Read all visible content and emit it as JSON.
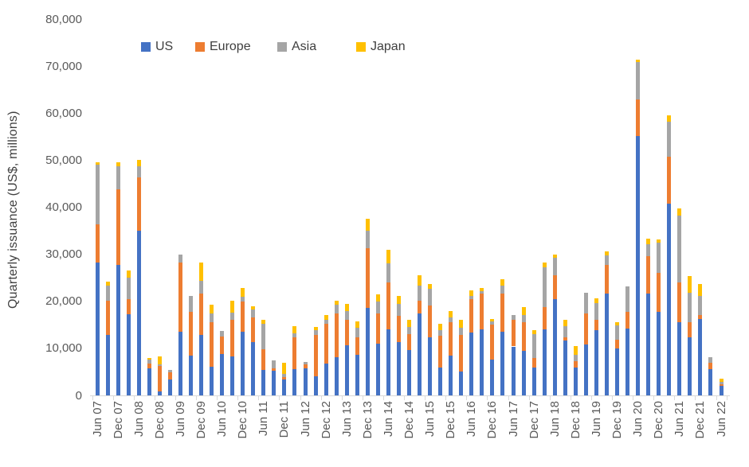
{
  "chart_data": {
    "type": "bar",
    "stacked": true,
    "title": "",
    "xlabel": "",
    "ylabel": "Quarterly issuance (US$, millions)",
    "ylim": [
      0,
      80000
    ],
    "ytick_interval": 10000,
    "ytick_labels": [
      "0",
      "10,000",
      "20,000",
      "30,000",
      "40,000",
      "50,000",
      "60,000",
      "70,000",
      "80,000"
    ],
    "grid": false,
    "legend_position": "top",
    "xtick_step": 2,
    "colors": {
      "axis": "#d9d9d9",
      "tick_text": "#595959",
      "title_text": "#404040"
    },
    "categories": [
      "Jun 07",
      "Sep 07",
      "Dec 07",
      "Mar 08",
      "Jun 08",
      "Sep 08",
      "Dec 08",
      "Mar 09",
      "Jun 09",
      "Sep 09",
      "Dec 09",
      "Mar 10",
      "Jun 10",
      "Sep 10",
      "Dec 10",
      "Mar 11",
      "Jun 11",
      "Sep 11",
      "Dec 11",
      "Mar 12",
      "Jun 12",
      "Sep 12",
      "Dec 12",
      "Mar 13",
      "Jun 13",
      "Sep 13",
      "Dec 13",
      "Mar 14",
      "Jun 14",
      "Sep 14",
      "Dec 14",
      "Mar 15",
      "Jun 15",
      "Sep 15",
      "Dec 15",
      "Mar 16",
      "Jun 16",
      "Sep 16",
      "Dec 16",
      "Mar 17",
      "Jun 17",
      "Sep 17",
      "Dec 17",
      "Mar 18",
      "Jun 18",
      "Sep 18",
      "Dec 18",
      "Mar 19",
      "Jun 19",
      "Sep 19",
      "Dec 19",
      "Mar 20",
      "Jun 20",
      "Sep 20",
      "Dec 20",
      "Mar 21",
      "Jun 21",
      "Sep 21",
      "Dec 21",
      "Mar 22",
      "Jun 22"
    ],
    "series": [
      {
        "name": "US",
        "color": "#4472C4",
        "values": [
          28300,
          12800,
          27800,
          17300,
          35000,
          5700,
          800,
          3300,
          13600,
          8400,
          12900,
          6100,
          8800,
          8300,
          13500,
          11300,
          5400,
          5200,
          3400,
          5600,
          5800,
          4100,
          6700,
          8200,
          10700,
          8700,
          18600,
          11000,
          14100,
          11400,
          9700,
          17400,
          12400,
          6000,
          8400,
          5000,
          13300,
          14000,
          7600,
          13500,
          10400,
          9400,
          6000,
          14000,
          20500,
          11700,
          6000,
          10900,
          13900,
          21700,
          9900,
          14200,
          55100,
          21700,
          17800,
          40800,
          15500,
          12400,
          16200,
          5600,
          2100
        ]
      },
      {
        "name": "Europe",
        "color": "#ED7D31",
        "values": [
          8000,
          7300,
          16000,
          3200,
          11400,
          1000,
          5400,
          1600,
          14600,
          9400,
          8800,
          9400,
          3700,
          7800,
          6400,
          5300,
          4400,
          500,
          500,
          6800,
          800,
          8800,
          8600,
          9300,
          5400,
          3700,
          12700,
          6500,
          9900,
          5500,
          3300,
          2700,
          6700,
          6700,
          7100,
          7800,
          7100,
          7600,
          7400,
          8200,
          5700,
          6100,
          2000,
          4800,
          5100,
          600,
          1300,
          6600,
          2200,
          6000,
          2000,
          3600,
          7800,
          7900,
          8200,
          10000,
          8600,
          3200,
          800,
          1300,
          300
        ]
      },
      {
        "name": "Asia",
        "color": "#A5A5A5",
        "values": [
          12700,
          3300,
          4900,
          4500,
          2300,
          900,
          400,
          500,
          1700,
          3300,
          2600,
          2000,
          1200,
          1500,
          1100,
          1600,
          5400,
          1800,
          700,
          800,
          500,
          900,
          700,
          1700,
          1800,
          2000,
          3700,
          2500,
          4000,
          2600,
          1500,
          3300,
          3600,
          1200,
          1000,
          1500,
          700,
          600,
          800,
          1700,
          900,
          1500,
          5000,
          8400,
          3600,
          2400,
          1400,
          4300,
          3600,
          2000,
          2900,
          5300,
          8000,
          2600,
          6400,
          7400,
          14200,
          6300,
          4200,
          1300,
          500
        ]
      },
      {
        "name": "Japan",
        "color": "#FFC000",
        "values": [
          500,
          800,
          800,
          1500,
          1300,
          400,
          1700,
          0,
          0,
          0,
          4000,
          1700,
          0,
          2600,
          1800,
          800,
          800,
          0,
          2400,
          1500,
          0,
          800,
          1000,
          1000,
          1600,
          1400,
          2600,
          1400,
          3000,
          1700,
          1600,
          2200,
          1000,
          1400,
          1500,
          1800,
          1300,
          700,
          500,
          1300,
          0,
          1700,
          900,
          1100,
          800,
          1400,
          1800,
          0,
          900,
          900,
          700,
          0,
          400,
          1200,
          800,
          1300,
          1500,
          3400,
          2500,
          0,
          600
        ]
      }
    ]
  }
}
